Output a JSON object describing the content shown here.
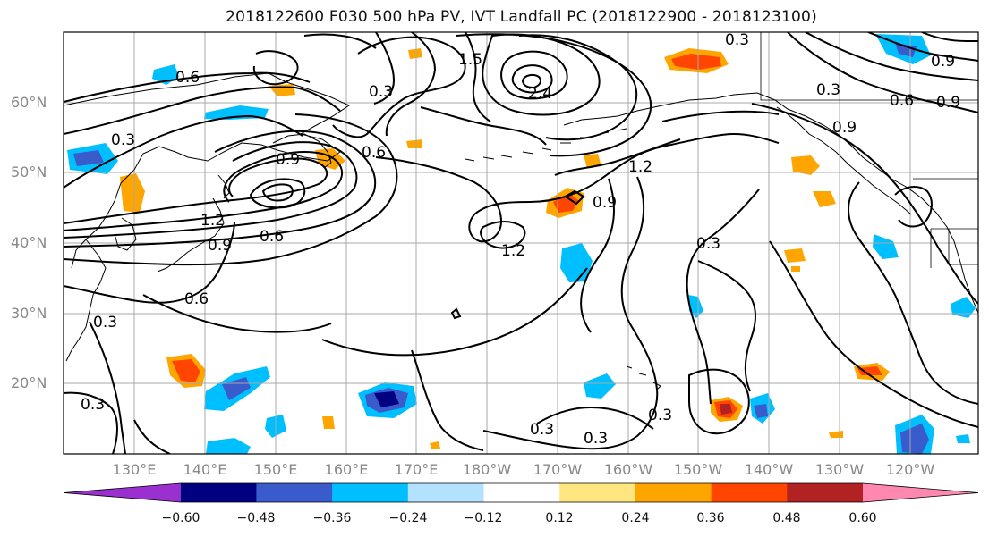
{
  "title": "2018122600 F030 500 hPa PV, IVT Landfall PC (2018122900 - 2018123100)",
  "lat_labels": [
    "60°N",
    "50°N",
    "40°N",
    "30°N",
    "20°N"
  ],
  "lon_labels": [
    "130°E",
    "140°E",
    "150°E",
    "160°E",
    "170°E",
    "180°W",
    "170°W",
    "160°W",
    "150°W",
    "140°W",
    "130°W",
    "120°W"
  ],
  "colorbar": {
    "ticks": [
      "−0.60",
      "−0.48",
      "−0.36",
      "−0.24",
      "−0.12",
      "0.12",
      "0.24",
      "0.36",
      "0.48",
      "0.60"
    ],
    "colors": [
      "#9b30d0",
      "#000080",
      "#3a5bcc",
      "#00bfff",
      "#b2e2ff",
      "#ffffff",
      "#ffe680",
      "#ffa500",
      "#ff4500",
      "#b22222",
      "#ff88b0"
    ]
  },
  "contour_labels": [
    {
      "text": "0.6"
    },
    {
      "text": "0.3"
    },
    {
      "text": "0.3"
    },
    {
      "text": "0.9"
    },
    {
      "text": "0.6"
    },
    {
      "text": "1.5"
    },
    {
      "text": "0.9"
    },
    {
      "text": "2.4"
    },
    {
      "text": "0.3"
    },
    {
      "text": "0.6"
    },
    {
      "text": "0.9"
    },
    {
      "text": "1.2"
    },
    {
      "text": "0.9"
    },
    {
      "text": "1.2"
    },
    {
      "text": "0.3"
    },
    {
      "text": "0.6"
    },
    {
      "text": "0.9"
    },
    {
      "text": "0.3"
    },
    {
      "text": "0.3"
    },
    {
      "text": "0.3"
    },
    {
      "text": "0.3"
    },
    {
      "text": "0.3"
    },
    {
      "text": "0.6"
    },
    {
      "text": "0.9"
    },
    {
      "text": "0.3"
    },
    {
      "text": "1.2"
    }
  ]
}
